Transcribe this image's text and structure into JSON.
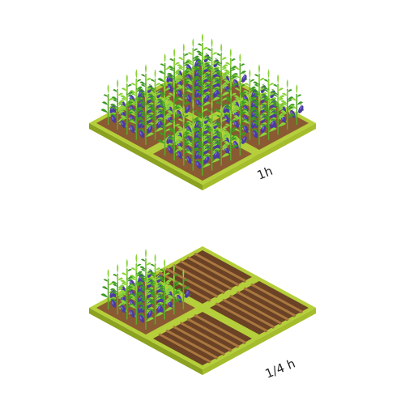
{
  "labels": {
    "full_time": "1h",
    "quarter_time": "1/4 h"
  },
  "illustrations": [
    {
      "name": "full-field",
      "plots_total": 4,
      "plots_planted": 4,
      "planted_fraction": 1.0,
      "crop": "eggplant"
    },
    {
      "name": "quarter-field",
      "plots_total": 4,
      "plots_planted": 1,
      "planted_fraction": 0.25,
      "crop": "eggplant"
    }
  ],
  "colors": {
    "frame_top": "#b5cf3a",
    "frame_side_left": "#8aa21f",
    "frame_side_right": "#a4bd2c",
    "soil": "#8a5a33",
    "soil_dark": "#6b4226",
    "furrow": "#a9773f",
    "leaf_light": "#8bd23a",
    "leaf_dark": "#3f9a24",
    "stem": "#5aa82a",
    "fruit": "#4a3ca0",
    "fruit_dark": "#2e2570",
    "text": "#222222"
  }
}
